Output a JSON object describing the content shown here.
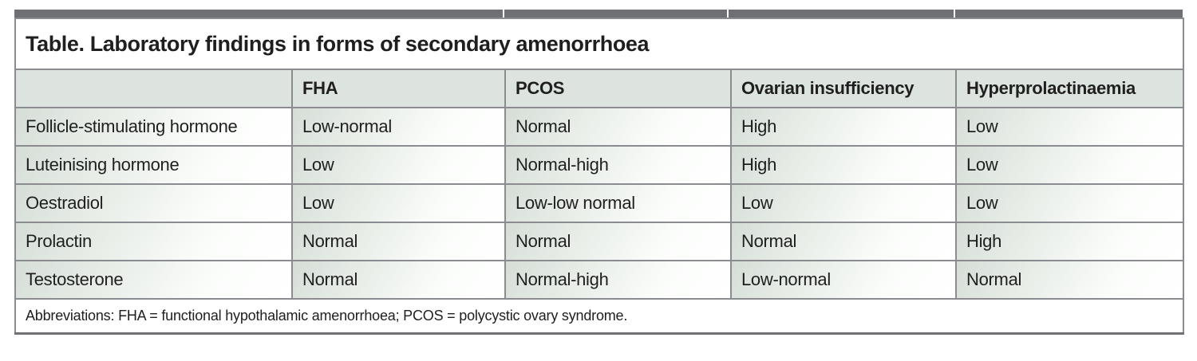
{
  "title": "Table. Laboratory findings in forms of secondary amenorrhoea",
  "table": {
    "columns": [
      "",
      "FHA",
      "PCOS",
      "Ovarian insufficiency",
      "Hyperprolactinaemia"
    ],
    "rows": [
      {
        "label": "Follicle-stimulating hormone",
        "values": [
          "Low-normal",
          "Normal",
          "High",
          "Low"
        ]
      },
      {
        "label": "Luteinising hormone",
        "values": [
          "Low",
          "Normal-high",
          "High",
          "Low"
        ]
      },
      {
        "label": "Oestradiol",
        "values": [
          "Low",
          "Low-low normal",
          "Low",
          "Low"
        ]
      },
      {
        "label": "Prolactin",
        "values": [
          "Normal",
          "Normal",
          "Normal",
          "High"
        ]
      },
      {
        "label": "Testosterone",
        "values": [
          "Normal",
          "Normal-high",
          "Low-normal",
          "Normal"
        ]
      }
    ],
    "footnote": "Abbreviations: FHA = functional hypothalamic amenorrhoea; PCOS = polycystic ovary syndrome."
  },
  "colors": {
    "top_bar": "#6e7073",
    "header_bg": "#dde3de",
    "cell_gradient_start": "#d6ddd7",
    "cell_gradient_end": "#ffffff",
    "border": "#8a8c8f",
    "text": "#1f1f1f"
  }
}
